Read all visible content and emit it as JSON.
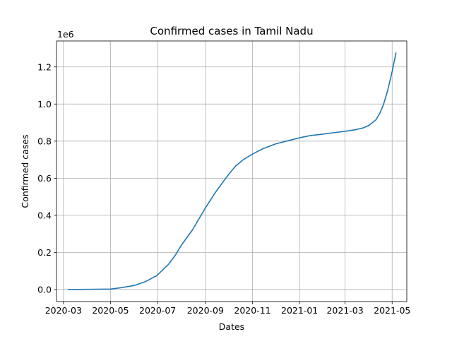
{
  "chart_data": {
    "type": "line",
    "title": "Confirmed cases in Tamil Nadu",
    "xlabel": "Dates",
    "ylabel": "Confirmed cases",
    "y_offset_label": "1e6",
    "x_tick_labels": [
      "2020-03",
      "2020-05",
      "2020-07",
      "2020-09",
      "2020-11",
      "2021-01",
      "2021-03",
      "2021-05"
    ],
    "y_tick_labels": [
      "0.0",
      "0.2",
      "0.4",
      "0.6",
      "0.8",
      "1.0",
      "1.2"
    ],
    "y_ticks": [
      0,
      200000,
      400000,
      600000,
      800000,
      1000000,
      1200000
    ],
    "xlim": [
      "2020-02-21",
      "2021-05-20"
    ],
    "ylim": [
      -65000,
      1340000
    ],
    "grid": true,
    "line_color": "#1f77b4",
    "series": [
      {
        "x": [
          "2020-03-07",
          "2020-04-01",
          "2020-05-01",
          "2020-05-15",
          "2020-06-01",
          "2020-06-15",
          "2020-06-30",
          "2020-07-15",
          "2020-07-24",
          "2020-08-01",
          "2020-08-15",
          "2020-09-01",
          "2020-09-15",
          "2020-10-01",
          "2020-10-10",
          "2020-10-20",
          "2020-11-01",
          "2020-11-15",
          "2020-12-01",
          "2020-12-15",
          "2021-01-01",
          "2021-01-15",
          "2021-02-01",
          "2021-02-15",
          "2021-03-01",
          "2021-03-15",
          "2021-03-25",
          "2021-04-01",
          "2021-04-10",
          "2021-04-15",
          "2021-04-20",
          "2021-04-25",
          "2021-05-01",
          "2021-05-06"
        ],
        "y": [
          0,
          1000,
          2500,
          10000,
          22000,
          42000,
          75000,
          135000,
          185000,
          240000,
          320000,
          440000,
          530000,
          620000,
          665000,
          700000,
          730000,
          760000,
          785000,
          800000,
          818000,
          830000,
          838000,
          846000,
          853000,
          862000,
          872000,
          885000,
          915000,
          950000,
          1000000,
          1070000,
          1175000,
          1275000
        ]
      }
    ]
  }
}
